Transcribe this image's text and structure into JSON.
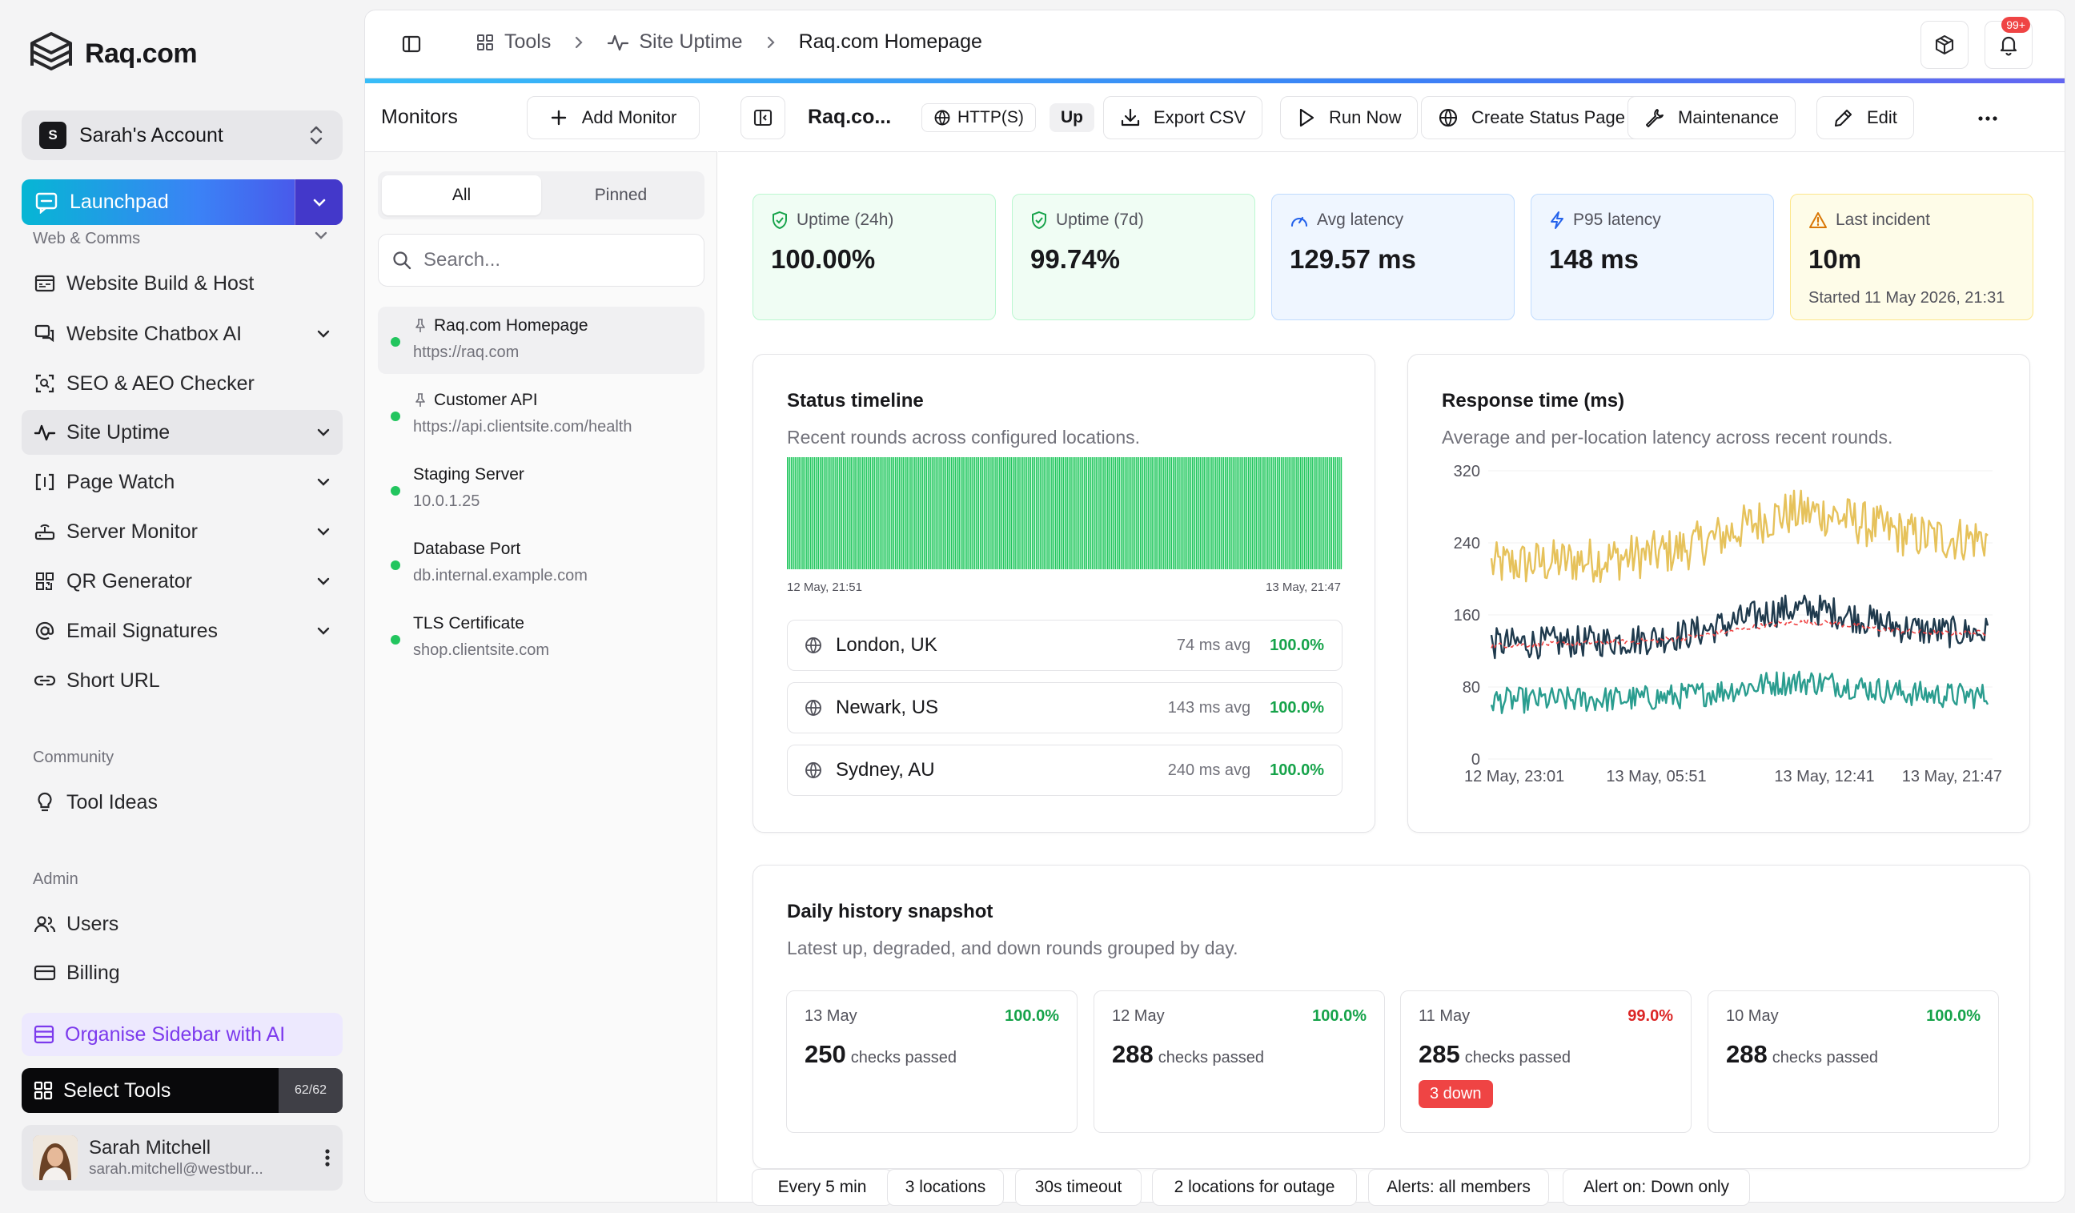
{
  "brand": {
    "name": "Raq.com"
  },
  "account": {
    "badge": "S",
    "name": "Sarah's Account"
  },
  "launchpad": {
    "label": "Launchpad"
  },
  "sidebar": {
    "section_web": "Web & Comms",
    "items": [
      {
        "label": "Website Build & Host"
      },
      {
        "label": "Website Chatbox AI"
      },
      {
        "label": "SEO & AEO Checker"
      },
      {
        "label": "Site Uptime"
      },
      {
        "label": "Page Watch"
      },
      {
        "label": "Server Monitor"
      },
      {
        "label": "QR Generator"
      },
      {
        "label": "Email Signatures"
      },
      {
        "label": "Short URL"
      }
    ],
    "section_community": "Community",
    "community_items": [
      {
        "label": "Tool Ideas"
      }
    ],
    "section_admin": "Admin",
    "admin_items": [
      {
        "label": "Users"
      },
      {
        "label": "Billing"
      }
    ],
    "organise": "Organise Sidebar with AI",
    "select_tools": "Select Tools",
    "select_tools_count": "62/62"
  },
  "user": {
    "name": "Sarah Mitchell",
    "email": "sarah.mitchell@westbur..."
  },
  "topbar": {
    "crumbs": [
      "Tools",
      "Site Uptime",
      "Raq.com Homepage"
    ],
    "notifications": "99+"
  },
  "monitors": {
    "title": "Monitors",
    "add_label": "Add Monitor",
    "tabs": [
      "All",
      "Pinned"
    ],
    "search_placeholder": "Search...",
    "items": [
      {
        "name": "Raq.com Homepage",
        "url": "https://raq.com",
        "pinned": true
      },
      {
        "name": "Customer API",
        "url": "https://api.clientsite.com/health",
        "pinned": true
      },
      {
        "name": "Staging Server",
        "url": "10.0.1.25",
        "pinned": false
      },
      {
        "name": "Database Port",
        "url": "db.internal.example.com",
        "pinned": false
      },
      {
        "name": "TLS Certificate",
        "url": "shop.clientsite.com",
        "pinned": false
      }
    ]
  },
  "detail": {
    "title": "Raq.co...",
    "protocol": "HTTP(S)",
    "status": "Up",
    "actions": {
      "export": "Export CSV",
      "run": "Run Now",
      "status_page": "Create Status Page",
      "maintenance": "Maintenance",
      "edit": "Edit"
    }
  },
  "stats": [
    {
      "label": "Uptime (24h)",
      "value": "100.00%",
      "sub": ""
    },
    {
      "label": "Uptime (7d)",
      "value": "99.74%",
      "sub": ""
    },
    {
      "label": "Avg latency",
      "value": "129.57 ms",
      "sub": ""
    },
    {
      "label": "P95 latency",
      "value": "148 ms",
      "sub": ""
    },
    {
      "label": "Last incident",
      "value": "10m",
      "sub": "Started 11 May 2026, 21:31"
    }
  ],
  "timeline": {
    "title": "Status timeline",
    "subtitle": "Recent rounds across configured locations.",
    "start": "12 May, 21:51",
    "end": "13 May, 21:47",
    "rounds": 288,
    "status_color": "#22c55e"
  },
  "locations": [
    {
      "name": "London, UK",
      "avg": "74 ms avg",
      "pct": "100.0%"
    },
    {
      "name": "Newark, US",
      "avg": "143 ms avg",
      "pct": "100.0%"
    },
    {
      "name": "Sydney, AU",
      "avg": "240 ms avg",
      "pct": "100.0%"
    }
  ],
  "response": {
    "title": "Response time (ms)",
    "subtitle": "Average and per-location latency across recent rounds."
  },
  "chart_data": {
    "type": "line",
    "title": "Response time (ms)",
    "ylim": [
      0,
      320
    ],
    "yticks": [
      0,
      80,
      160,
      240,
      320
    ],
    "xticks": [
      "12 May, 23:01",
      "13 May, 05:51",
      "13 May, 12:41",
      "13 May, 21:47"
    ],
    "grid": true,
    "series": [
      {
        "name": "Sydney, AU",
        "color": "#e6c25b",
        "mean_start": 215,
        "mean_end": 245,
        "mean_peak": 270
      },
      {
        "name": "Newark, US",
        "color": "#1f3a4d",
        "mean_start": 128,
        "mean_end": 140,
        "mean_peak": 165
      },
      {
        "name": "London, UK",
        "color": "#2a9d8f",
        "mean_start": 65,
        "mean_end": 70,
        "mean_peak": 85
      },
      {
        "name": "Average",
        "color": "#ef4444",
        "dashed": true,
        "mean_start": 126,
        "mean_end": 140,
        "mean_peak": 150
      }
    ]
  },
  "history": {
    "title": "Daily history snapshot",
    "subtitle": "Latest up, degraded, and down rounds grouped by day.",
    "days": [
      {
        "date": "13 May",
        "pct": "100.0%",
        "count": "250",
        "label": "checks passed",
        "down": ""
      },
      {
        "date": "12 May",
        "pct": "100.0%",
        "count": "288",
        "label": "checks passed",
        "down": ""
      },
      {
        "date": "11 May",
        "pct": "99.0%",
        "count": "285",
        "label": "checks passed",
        "down": "3 down"
      },
      {
        "date": "10 May",
        "pct": "100.0%",
        "count": "288",
        "label": "checks passed",
        "down": ""
      }
    ]
  },
  "tags": [
    "Every 5 min",
    "3 locations",
    "30s timeout",
    "2 locations for outage",
    "Alerts: all members",
    "Alert on: Down only"
  ],
  "colors": {
    "up": "#22c55e",
    "down": "#ef4444",
    "pct_ok": "#16a34a",
    "pct_bad": "#dc2626"
  }
}
